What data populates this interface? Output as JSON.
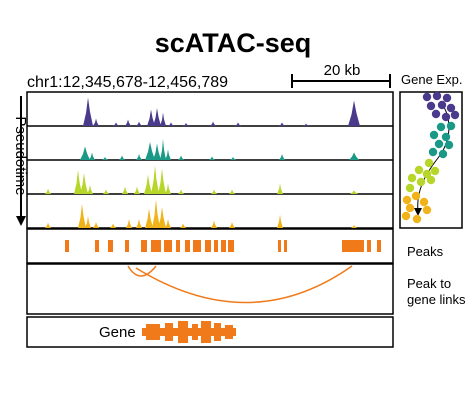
{
  "title": "scATAC-seq",
  "locus": "chr1:12,345,678-12,456,789",
  "scale_bar_label": "20 kb",
  "gene_exp_label": "Gene Exp.",
  "pseudotime_label": "Pseudotime",
  "peaks_label": "Peaks",
  "links_label_line1": "Peak to",
  "links_label_line2": "gene links",
  "gene_label": "Gene",
  "colors": {
    "track_1": "#4b3a8c",
    "track_2": "#1a9a86",
    "track_3": "#b6d62a",
    "track_4": "#f0b31a",
    "peak": "#f07a1a",
    "frame": "#000000"
  },
  "tracks": [
    {
      "color_key": "track_1"
    },
    {
      "color_key": "track_2"
    },
    {
      "color_key": "track_3"
    },
    {
      "color_key": "track_4"
    }
  ]
}
